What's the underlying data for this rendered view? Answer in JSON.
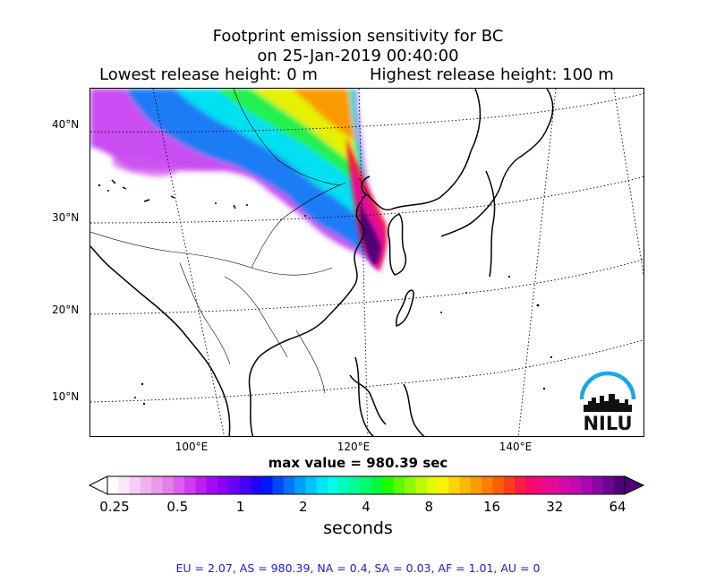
{
  "title": {
    "line1": "Footprint emission sensitivity for BC",
    "line2": "on 25-Jan-2019 00:40:00",
    "lowest": "Lowest release height: 0 m",
    "highest": "Highest release height: 100 m"
  },
  "map": {
    "lat_labels": [
      "40°N",
      "30°N",
      "20°N",
      "10°N"
    ],
    "lon_labels": [
      "100°E",
      "120°E",
      "140°E"
    ]
  },
  "max_value": "max value = 980.39 sec",
  "colorbar": {
    "ticks": [
      "0.25",
      "0.5",
      "1",
      "2",
      "4",
      "8",
      "16",
      "32",
      "64"
    ],
    "unit": "seconds",
    "colors": [
      "#ffffff",
      "#fbe6fb",
      "#f5cdf5",
      "#efb3f0",
      "#e99ae9",
      "#e37fe8",
      "#dc5fef",
      "#cf3cf2",
      "#bd1ef2",
      "#a40af2",
      "#8a00f5",
      "#6a00f7",
      "#4400f9",
      "#2000fa",
      "#0018fb",
      "#0048fb",
      "#0074fb",
      "#009efb",
      "#00c4fb",
      "#00e4fb",
      "#00fbe6",
      "#00fbc0",
      "#00fb96",
      "#00fb6a",
      "#00fb3c",
      "#20fb00",
      "#5afb00",
      "#8cfb00",
      "#bafb00",
      "#e2fb00",
      "#fbf000",
      "#fbd400",
      "#fbb800",
      "#fb9c00",
      "#fb7e00",
      "#fb6000",
      "#fb3e1c",
      "#fb1c44",
      "#f70a68",
      "#ee0a84",
      "#e20a98",
      "#d40aa6",
      "#c00ab0",
      "#a808b4",
      "#8c06a8",
      "#6e0494",
      "#520078"
    ]
  },
  "stats": "EU = 2.07,  AS = 980.39,  NA = 0.4,  SA = 0.03,  AF = 1.01,  AU = 0",
  "logo": {
    "text": "NILU",
    "arc_color": "#1aa7e8"
  }
}
